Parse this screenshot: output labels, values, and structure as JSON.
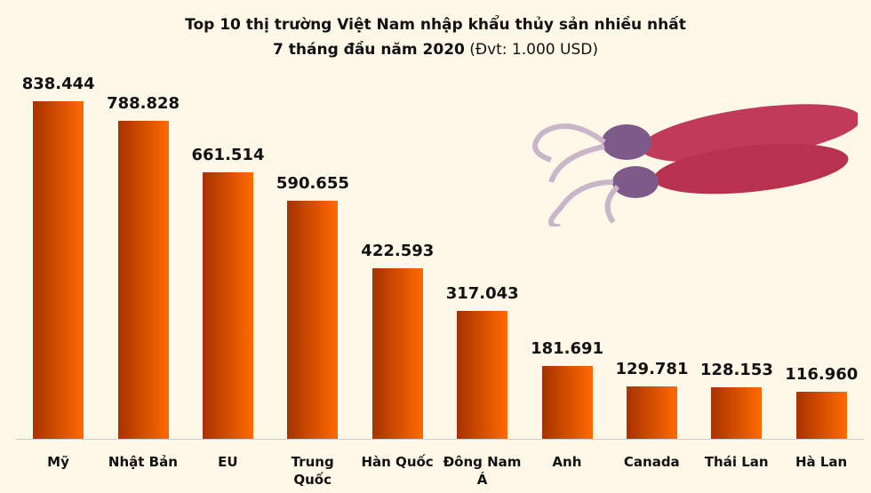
{
  "chart_data": {
    "type": "bar",
    "title": "Top 10 thị trường Việt Nam nhập khẩu thủy sản nhiều nhất",
    "subtitle": "7 tháng đầu năm 2020",
    "unit_note": "(Đvt: 1.000 USD)",
    "categories": [
      "Mỹ",
      "Nhật Bản",
      "EU",
      "Trung Quốc",
      "Hàn Quốc",
      "Đông Nam Á",
      "Anh",
      "Canada",
      "Thái Lan",
      "Hà Lan"
    ],
    "values": [
      838444,
      788828,
      661514,
      590655,
      422593,
      317043,
      181691,
      129781,
      128153,
      116960
    ],
    "value_labels": [
      "838.444",
      "788.828",
      "661.514",
      "590.655",
      "422.593",
      "317.043",
      "181.691",
      "129.781",
      "128.153",
      "116.960"
    ],
    "colors": [
      "#a83200",
      "#ff6a00"
    ],
    "ylim": [
      0,
      900000
    ]
  }
}
